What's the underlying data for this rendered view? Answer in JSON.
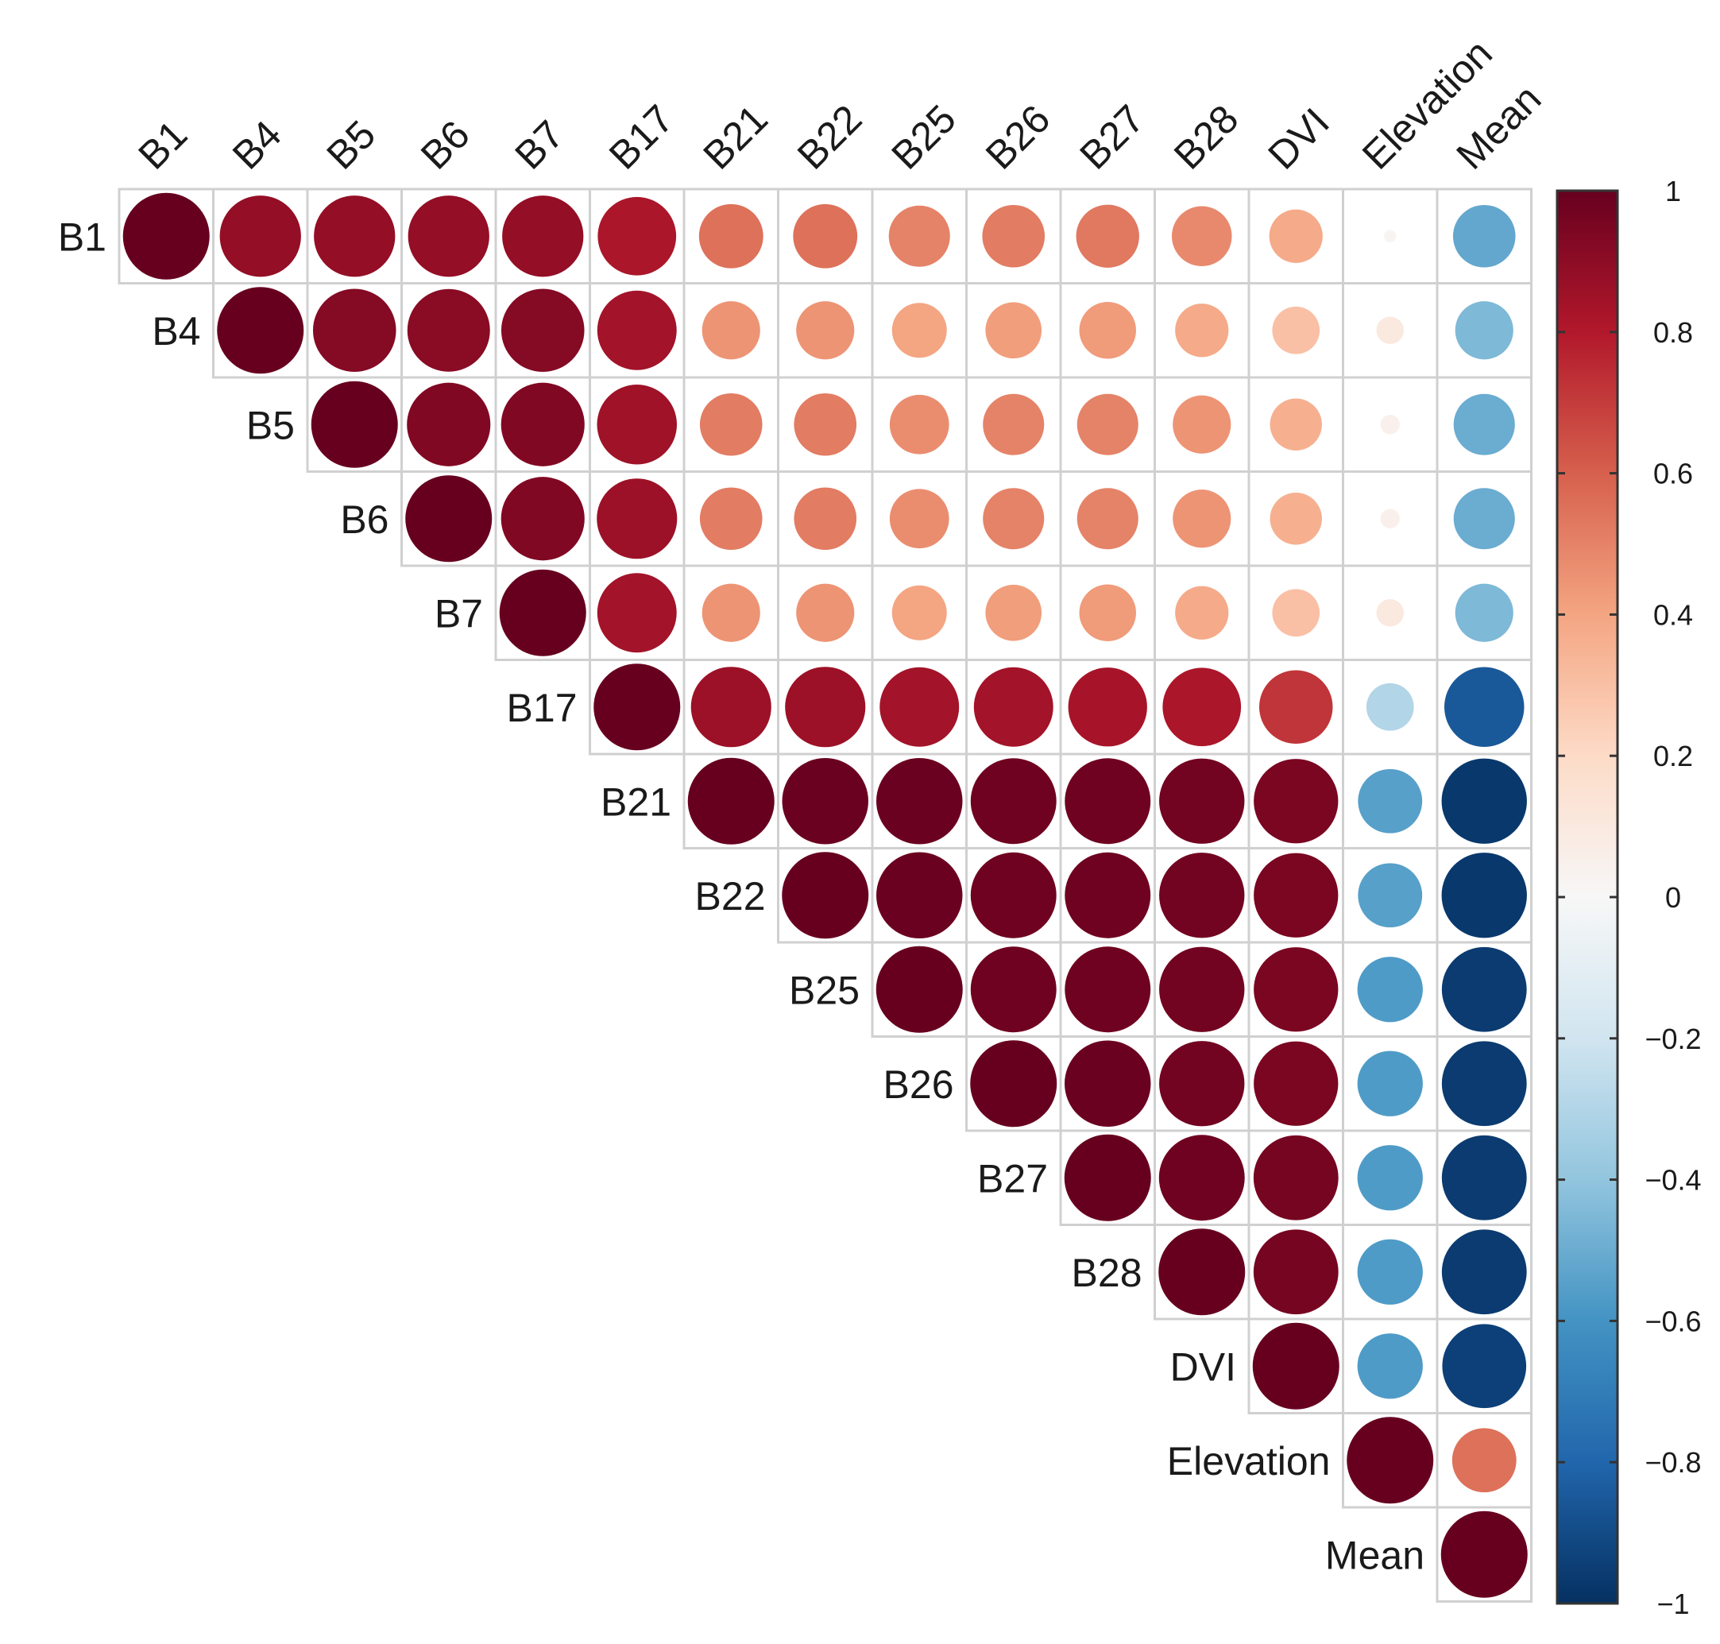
{
  "chart_data": {
    "type": "heatmap",
    "subtype": "correlation-circle-upper-triangle",
    "title": "",
    "variables": [
      "B1",
      "B4",
      "B5",
      "B6",
      "B7",
      "B17",
      "B21",
      "B22",
      "B25",
      "B26",
      "B27",
      "B28",
      "DVI",
      "Elevation",
      "Mean"
    ],
    "matrix": [
      [
        1.0,
        0.88,
        0.88,
        0.88,
        0.88,
        0.82,
        0.55,
        0.55,
        0.5,
        0.52,
        0.53,
        0.48,
        0.38,
        0.02,
        -0.52
      ],
      [
        null,
        1.0,
        0.92,
        0.91,
        0.92,
        0.84,
        0.45,
        0.45,
        0.4,
        0.42,
        0.43,
        0.38,
        0.3,
        0.1,
        -0.45
      ],
      [
        null,
        null,
        1.0,
        0.93,
        0.93,
        0.85,
        0.52,
        0.52,
        0.47,
        0.5,
        0.5,
        0.45,
        0.36,
        0.05,
        -0.5
      ],
      [
        null,
        null,
        null,
        1.0,
        0.93,
        0.86,
        0.52,
        0.52,
        0.47,
        0.5,
        0.5,
        0.45,
        0.36,
        0.05,
        -0.5
      ],
      [
        null,
        null,
        null,
        null,
        1.0,
        0.84,
        0.45,
        0.45,
        0.4,
        0.42,
        0.43,
        0.38,
        0.3,
        0.1,
        -0.45
      ],
      [
        null,
        null,
        null,
        null,
        null,
        1.0,
        0.86,
        0.86,
        0.84,
        0.84,
        0.83,
        0.82,
        0.72,
        -0.3,
        -0.85
      ],
      [
        null,
        null,
        null,
        null,
        null,
        null,
        1.0,
        0.99,
        0.99,
        0.98,
        0.98,
        0.97,
        0.95,
        -0.55,
        -0.97
      ],
      [
        null,
        null,
        null,
        null,
        null,
        null,
        null,
        1.0,
        0.99,
        0.98,
        0.98,
        0.97,
        0.95,
        -0.55,
        -0.97
      ],
      [
        null,
        null,
        null,
        null,
        null,
        null,
        null,
        null,
        1.0,
        0.98,
        0.98,
        0.97,
        0.95,
        -0.57,
        -0.96
      ],
      [
        null,
        null,
        null,
        null,
        null,
        null,
        null,
        null,
        null,
        1.0,
        0.99,
        0.97,
        0.95,
        -0.57,
        -0.96
      ],
      [
        null,
        null,
        null,
        null,
        null,
        null,
        null,
        null,
        null,
        null,
        1.0,
        0.98,
        0.96,
        -0.57,
        -0.96
      ],
      [
        null,
        null,
        null,
        null,
        null,
        null,
        null,
        null,
        null,
        null,
        null,
        1.0,
        0.96,
        -0.57,
        -0.96
      ],
      [
        null,
        null,
        null,
        null,
        null,
        null,
        null,
        null,
        null,
        null,
        null,
        null,
        1.0,
        -0.57,
        -0.94
      ],
      [
        null,
        null,
        null,
        null,
        null,
        null,
        null,
        null,
        null,
        null,
        null,
        null,
        null,
        1.0,
        0.55
      ],
      [
        null,
        null,
        null,
        null,
        null,
        null,
        null,
        null,
        null,
        null,
        null,
        null,
        null,
        null,
        1.0
      ]
    ],
    "colorbar": {
      "range": [
        -1,
        1
      ],
      "ticks": [
        1,
        0.8,
        0.6,
        0.4,
        0.2,
        0,
        -0.2,
        -0.4,
        -0.6,
        -0.8,
        -1
      ],
      "tick_labels": [
        "1",
        "0.8",
        "0.6",
        "0.4",
        "0.2",
        "0",
        "−0.2",
        "−0.4",
        "−0.6",
        "−0.8",
        "−1"
      ],
      "position": "right"
    },
    "color_scale": [
      {
        "v": -1.0,
        "c": "#053061"
      },
      {
        "v": -0.8,
        "c": "#2166ac"
      },
      {
        "v": -0.6,
        "c": "#4393c3"
      },
      {
        "v": -0.4,
        "c": "#92c5de"
      },
      {
        "v": -0.2,
        "c": "#d1e5f0"
      },
      {
        "v": 0.0,
        "c": "#f7f7f7"
      },
      {
        "v": 0.2,
        "c": "#fddbc7"
      },
      {
        "v": 0.4,
        "c": "#f4a582"
      },
      {
        "v": 0.6,
        "c": "#d6604d"
      },
      {
        "v": 0.8,
        "c": "#b2182b"
      },
      {
        "v": 1.0,
        "c": "#67001f"
      }
    ]
  }
}
